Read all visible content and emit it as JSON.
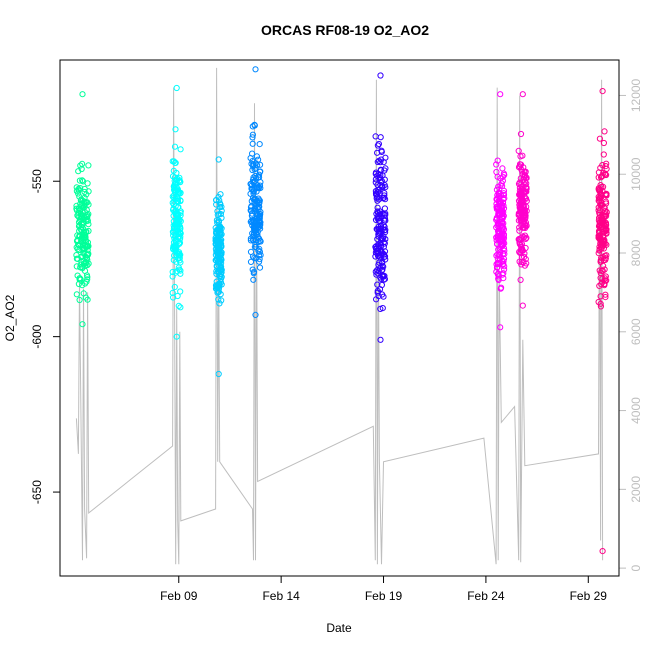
{
  "chart_data": {
    "type": "scatter",
    "title": "ORCAS RF08-19 O2_AO2",
    "xlabel": "Date",
    "ylabel": "O2_AO2",
    "x_ticks": [
      "Feb 09",
      "Feb 14",
      "Feb 19",
      "Feb 24",
      "Feb 29"
    ],
    "x_tick_days": [
      9,
      14,
      19,
      24,
      29
    ],
    "xlim": [
      3.2,
      30.5
    ],
    "ylim_left": [
      -677,
      -511
    ],
    "y_ticks_left": [
      -650,
      -600,
      -550
    ],
    "ylim_right": [
      -200,
      12900
    ],
    "y_ticks_right": [
      0,
      2000,
      4000,
      6000,
      8000,
      10000,
      12000
    ],
    "grid": false,
    "legend": "none",
    "series": [
      {
        "color": "#00FF99",
        "x_range": [
          4.0,
          4.6
        ],
        "y_band": [
          -596,
          -537
        ],
        "y_min": -596,
        "y_max": -522
      },
      {
        "color": "#00FFFF",
        "x_range": [
          8.7,
          9.1
        ],
        "y_band": [
          -597,
          -528
        ],
        "y_min": -600,
        "y_max": -520
      },
      {
        "color": "#00CCFF",
        "x_range": [
          10.8,
          11.1
        ],
        "y_band": [
          -597,
          -548
        ],
        "y_min": -612,
        "y_max": -543
      },
      {
        "color": "#0088FF",
        "x_range": [
          12.5,
          13.0
        ],
        "y_band": [
          -593,
          -525
        ],
        "y_min": -593,
        "y_max": -514
      },
      {
        "color": "#3300FF",
        "x_range": [
          18.6,
          19.1
        ],
        "y_band": [
          -600,
          -528
        ],
        "y_min": -601,
        "y_max": -516
      },
      {
        "color": "#FF00FF",
        "x_range": [
          24.5,
          24.9
        ],
        "y_band": [
          -596,
          -531
        ],
        "y_min": -597,
        "y_max": -522
      },
      {
        "color": "#FF00CC",
        "x_range": [
          25.6,
          26.0
        ],
        "y_band": [
          -586,
          -533
        ],
        "y_min": -590,
        "y_max": -522
      },
      {
        "color": "#FF0088",
        "x_range": [
          29.5,
          29.9
        ],
        "y_band": [
          -597,
          -530
        ],
        "y_min": -669,
        "y_max": -521
      }
    ],
    "secondary_line": {
      "name": "",
      "color": "#bebebe",
      "description_free": true,
      "points": [
        [
          4.0,
          3800
        ],
        [
          4.1,
          2900
        ],
        [
          4.15,
          7300
        ],
        [
          4.3,
          200
        ],
        [
          4.35,
          7100
        ],
        [
          4.4,
          1500
        ],
        [
          4.5,
          250
        ],
        [
          4.55,
          7000
        ],
        [
          4.6,
          1400
        ],
        [
          8.7,
          3100
        ],
        [
          8.75,
          12200
        ],
        [
          8.85,
          100
        ],
        [
          8.9,
          6600
        ],
        [
          8.95,
          1200
        ],
        [
          9.0,
          100
        ],
        [
          9.05,
          6000
        ],
        [
          9.1,
          1200
        ],
        [
          10.8,
          1500
        ],
        [
          10.85,
          12700
        ],
        [
          10.9,
          2700
        ],
        [
          10.95,
          7600
        ],
        [
          11.0,
          2700
        ],
        [
          12.6,
          1500
        ],
        [
          12.65,
          200
        ],
        [
          12.7,
          11800
        ],
        [
          12.75,
          200
        ],
        [
          12.8,
          9000
        ],
        [
          12.85,
          2200
        ],
        [
          18.5,
          3600
        ],
        [
          18.6,
          200
        ],
        [
          18.65,
          12400
        ],
        [
          18.7,
          100
        ],
        [
          18.75,
          8100
        ],
        [
          18.8,
          2700
        ],
        [
          18.9,
          100
        ],
        [
          19.0,
          2700
        ],
        [
          23.9,
          3300
        ],
        [
          24.5,
          100
        ],
        [
          24.55,
          12200
        ],
        [
          24.6,
          200
        ],
        [
          24.65,
          7500
        ],
        [
          24.75,
          3700
        ],
        [
          25.4,
          4100
        ],
        [
          25.6,
          200
        ],
        [
          25.65,
          12000
        ],
        [
          25.7,
          150
        ],
        [
          25.8,
          5800
        ],
        [
          25.9,
          2600
        ],
        [
          29.5,
          2900
        ],
        [
          29.55,
          9900
        ],
        [
          29.6,
          700
        ],
        [
          29.65,
          12400
        ],
        [
          29.7,
          200
        ]
      ]
    }
  }
}
